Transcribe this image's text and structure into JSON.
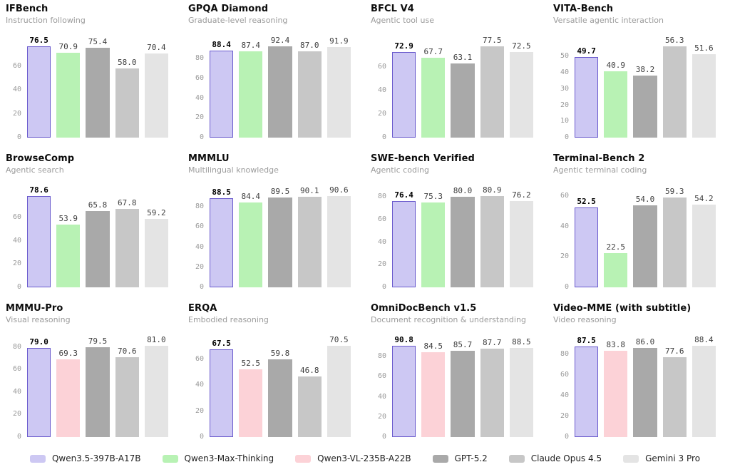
{
  "page": {
    "background": "#ffffff"
  },
  "colors": {
    "highlight_fill": "#cdc8f3",
    "highlight_border": "#6a5acd",
    "green": "#b8f2b4",
    "pink": "#fcd2d7",
    "dark_gray": "#a9a9a9",
    "mid_gray": "#c7c7c7",
    "light_gray": "#e4e4e4",
    "title_text": "#0d0d0d",
    "subtitle_text": "#9b9b9b",
    "tick_text": "#999999",
    "value_text": "#3d3d3d"
  },
  "legend": {
    "items": [
      {
        "label": "Qwen3.5-397B-A17B",
        "color": "#cdc8f3"
      },
      {
        "label": "Qwen3-Max-Thinking",
        "color": "#b8f2b4"
      },
      {
        "label": "Qwen3-VL-235B-A22B",
        "color": "#fcd2d7"
      },
      {
        "label": "GPT-5.2",
        "color": "#a9a9a9"
      },
      {
        "label": "Claude Opus 4.5",
        "color": "#c7c7c7"
      },
      {
        "label": "Gemini 3 Pro",
        "color": "#e4e4e4"
      }
    ]
  },
  "chart_data": [
    {
      "type": "bar",
      "title": "IFBench",
      "subtitle": "Instruction following",
      "yticks": [
        0,
        20,
        40,
        60
      ],
      "grid": false,
      "series": [
        {
          "name": "Qwen3.5-397B-A17B",
          "value": 76.5,
          "highlight": true
        },
        {
          "name": "Qwen3-Max-Thinking",
          "value": 70.9
        },
        {
          "name": "GPT-5.2",
          "value": 75.4
        },
        {
          "name": "Claude Opus 4.5",
          "value": 58.0
        },
        {
          "name": "Gemini 3 Pro",
          "value": 70.4
        }
      ]
    },
    {
      "type": "bar",
      "title": "GPQA Diamond",
      "subtitle": "Graduate-level reasoning",
      "yticks": [
        0,
        20,
        40,
        60,
        80
      ],
      "grid": false,
      "series": [
        {
          "name": "Qwen3.5-397B-A17B",
          "value": 88.4,
          "highlight": true
        },
        {
          "name": "Qwen3-Max-Thinking",
          "value": 87.4
        },
        {
          "name": "GPT-5.2",
          "value": 92.4
        },
        {
          "name": "Claude Opus 4.5",
          "value": 87.0
        },
        {
          "name": "Gemini 3 Pro",
          "value": 91.9
        }
      ]
    },
    {
      "type": "bar",
      "title": "BFCL V4",
      "subtitle": "Agentic tool use",
      "yticks": [
        0,
        20,
        40,
        60
      ],
      "grid": false,
      "series": [
        {
          "name": "Qwen3.5-397B-A17B",
          "value": 72.9,
          "highlight": true
        },
        {
          "name": "Qwen3-Max-Thinking",
          "value": 67.7
        },
        {
          "name": "GPT-5.2",
          "value": 63.1
        },
        {
          "name": "Claude Opus 4.5",
          "value": 77.5
        },
        {
          "name": "Gemini 3 Pro",
          "value": 72.5
        }
      ]
    },
    {
      "type": "bar",
      "title": "VITA-Bench",
      "subtitle": "Versatile agentic interaction",
      "yticks": [
        0,
        10,
        20,
        30,
        40,
        50
      ],
      "grid": false,
      "series": [
        {
          "name": "Qwen3.5-397B-A17B",
          "value": 49.7,
          "highlight": true
        },
        {
          "name": "Qwen3-Max-Thinking",
          "value": 40.9
        },
        {
          "name": "GPT-5.2",
          "value": 38.2
        },
        {
          "name": "Claude Opus 4.5",
          "value": 56.3
        },
        {
          "name": "Gemini 3 Pro",
          "value": 51.6
        }
      ]
    },
    {
      "type": "bar",
      "title": "BrowseComp",
      "subtitle": "Agentic search",
      "yticks": [
        0,
        20,
        40,
        60
      ],
      "grid": false,
      "series": [
        {
          "name": "Qwen3.5-397B-A17B",
          "value": 78.6,
          "highlight": true
        },
        {
          "name": "Qwen3-Max-Thinking",
          "value": 53.9
        },
        {
          "name": "GPT-5.2",
          "value": 65.8
        },
        {
          "name": "Claude Opus 4.5",
          "value": 67.8
        },
        {
          "name": "Gemini 3 Pro",
          "value": 59.2
        }
      ]
    },
    {
      "type": "bar",
      "title": "MMMLU",
      "subtitle": "Multilingual knowledge",
      "yticks": [
        0,
        20,
        40,
        60,
        80
      ],
      "grid": false,
      "series": [
        {
          "name": "Qwen3.5-397B-A17B",
          "value": 88.5,
          "highlight": true
        },
        {
          "name": "Qwen3-Max-Thinking",
          "value": 84.4
        },
        {
          "name": "GPT-5.2",
          "value": 89.5
        },
        {
          "name": "Claude Opus 4.5",
          "value": 90.1
        },
        {
          "name": "Gemini 3 Pro",
          "value": 90.6
        }
      ]
    },
    {
      "type": "bar",
      "title": "SWE-bench Verified",
      "subtitle": "Agentic coding",
      "yticks": [
        0,
        20,
        40,
        60,
        80
      ],
      "grid": false,
      "series": [
        {
          "name": "Qwen3.5-397B-A17B",
          "value": 76.4,
          "highlight": true
        },
        {
          "name": "Qwen3-Max-Thinking",
          "value": 75.3
        },
        {
          "name": "GPT-5.2",
          "value": 80.0
        },
        {
          "name": "Claude Opus 4.5",
          "value": 80.9
        },
        {
          "name": "Gemini 3 Pro",
          "value": 76.2
        }
      ]
    },
    {
      "type": "bar",
      "title": "Terminal-Bench 2",
      "subtitle": "Agentic terminal coding",
      "yticks": [
        0,
        20,
        40,
        60
      ],
      "grid": false,
      "series": [
        {
          "name": "Qwen3.5-397B-A17B",
          "value": 52.5,
          "highlight": true
        },
        {
          "name": "Qwen3-Max-Thinking",
          "value": 22.5
        },
        {
          "name": "GPT-5.2",
          "value": 54.0
        },
        {
          "name": "Claude Opus 4.5",
          "value": 59.3
        },
        {
          "name": "Gemini 3 Pro",
          "value": 54.2
        }
      ]
    },
    {
      "type": "bar",
      "title": "MMMU-Pro",
      "subtitle": "Visual reasoning",
      "yticks": [
        0,
        20,
        40,
        60,
        80
      ],
      "grid": false,
      "series": [
        {
          "name": "Qwen3.5-397B-A17B",
          "value": 79.0,
          "highlight": true
        },
        {
          "name": "Qwen3-VL-235B-A22B",
          "value": 69.3
        },
        {
          "name": "GPT-5.2",
          "value": 79.5
        },
        {
          "name": "Claude Opus 4.5",
          "value": 70.6
        },
        {
          "name": "Gemini 3 Pro",
          "value": 81.0
        }
      ]
    },
    {
      "type": "bar",
      "title": "ERQA",
      "subtitle": "Embodied reasoning",
      "yticks": [
        0,
        20,
        40,
        60
      ],
      "grid": false,
      "series": [
        {
          "name": "Qwen3.5-397B-A17B",
          "value": 67.5,
          "highlight": true
        },
        {
          "name": "Qwen3-VL-235B-A22B",
          "value": 52.5
        },
        {
          "name": "GPT-5.2",
          "value": 59.8
        },
        {
          "name": "Claude Opus 4.5",
          "value": 46.8
        },
        {
          "name": "Gemini 3 Pro",
          "value": 70.5
        }
      ]
    },
    {
      "type": "bar",
      "title": "OmniDocBench v1.5",
      "subtitle": "Document recognition & understanding",
      "yticks": [
        0,
        20,
        40,
        60,
        80
      ],
      "grid": false,
      "series": [
        {
          "name": "Qwen3.5-397B-A17B",
          "value": 90.8,
          "highlight": true
        },
        {
          "name": "Qwen3-VL-235B-A22B",
          "value": 84.5
        },
        {
          "name": "GPT-5.2",
          "value": 85.7
        },
        {
          "name": "Claude Opus 4.5",
          "value": 87.7
        },
        {
          "name": "Gemini 3 Pro",
          "value": 88.5
        }
      ]
    },
    {
      "type": "bar",
      "title": "Video-MME (with subtitle)",
      "subtitle": "Video reasoning",
      "yticks": [
        0,
        20,
        40,
        60,
        80
      ],
      "grid": false,
      "series": [
        {
          "name": "Qwen3.5-397B-A17B",
          "value": 87.5,
          "highlight": true
        },
        {
          "name": "Qwen3-VL-235B-A22B",
          "value": 83.8
        },
        {
          "name": "GPT-5.2",
          "value": 86.0
        },
        {
          "name": "Claude Opus 4.5",
          "value": 77.6
        },
        {
          "name": "Gemini 3 Pro",
          "value": 88.4
        }
      ]
    }
  ]
}
